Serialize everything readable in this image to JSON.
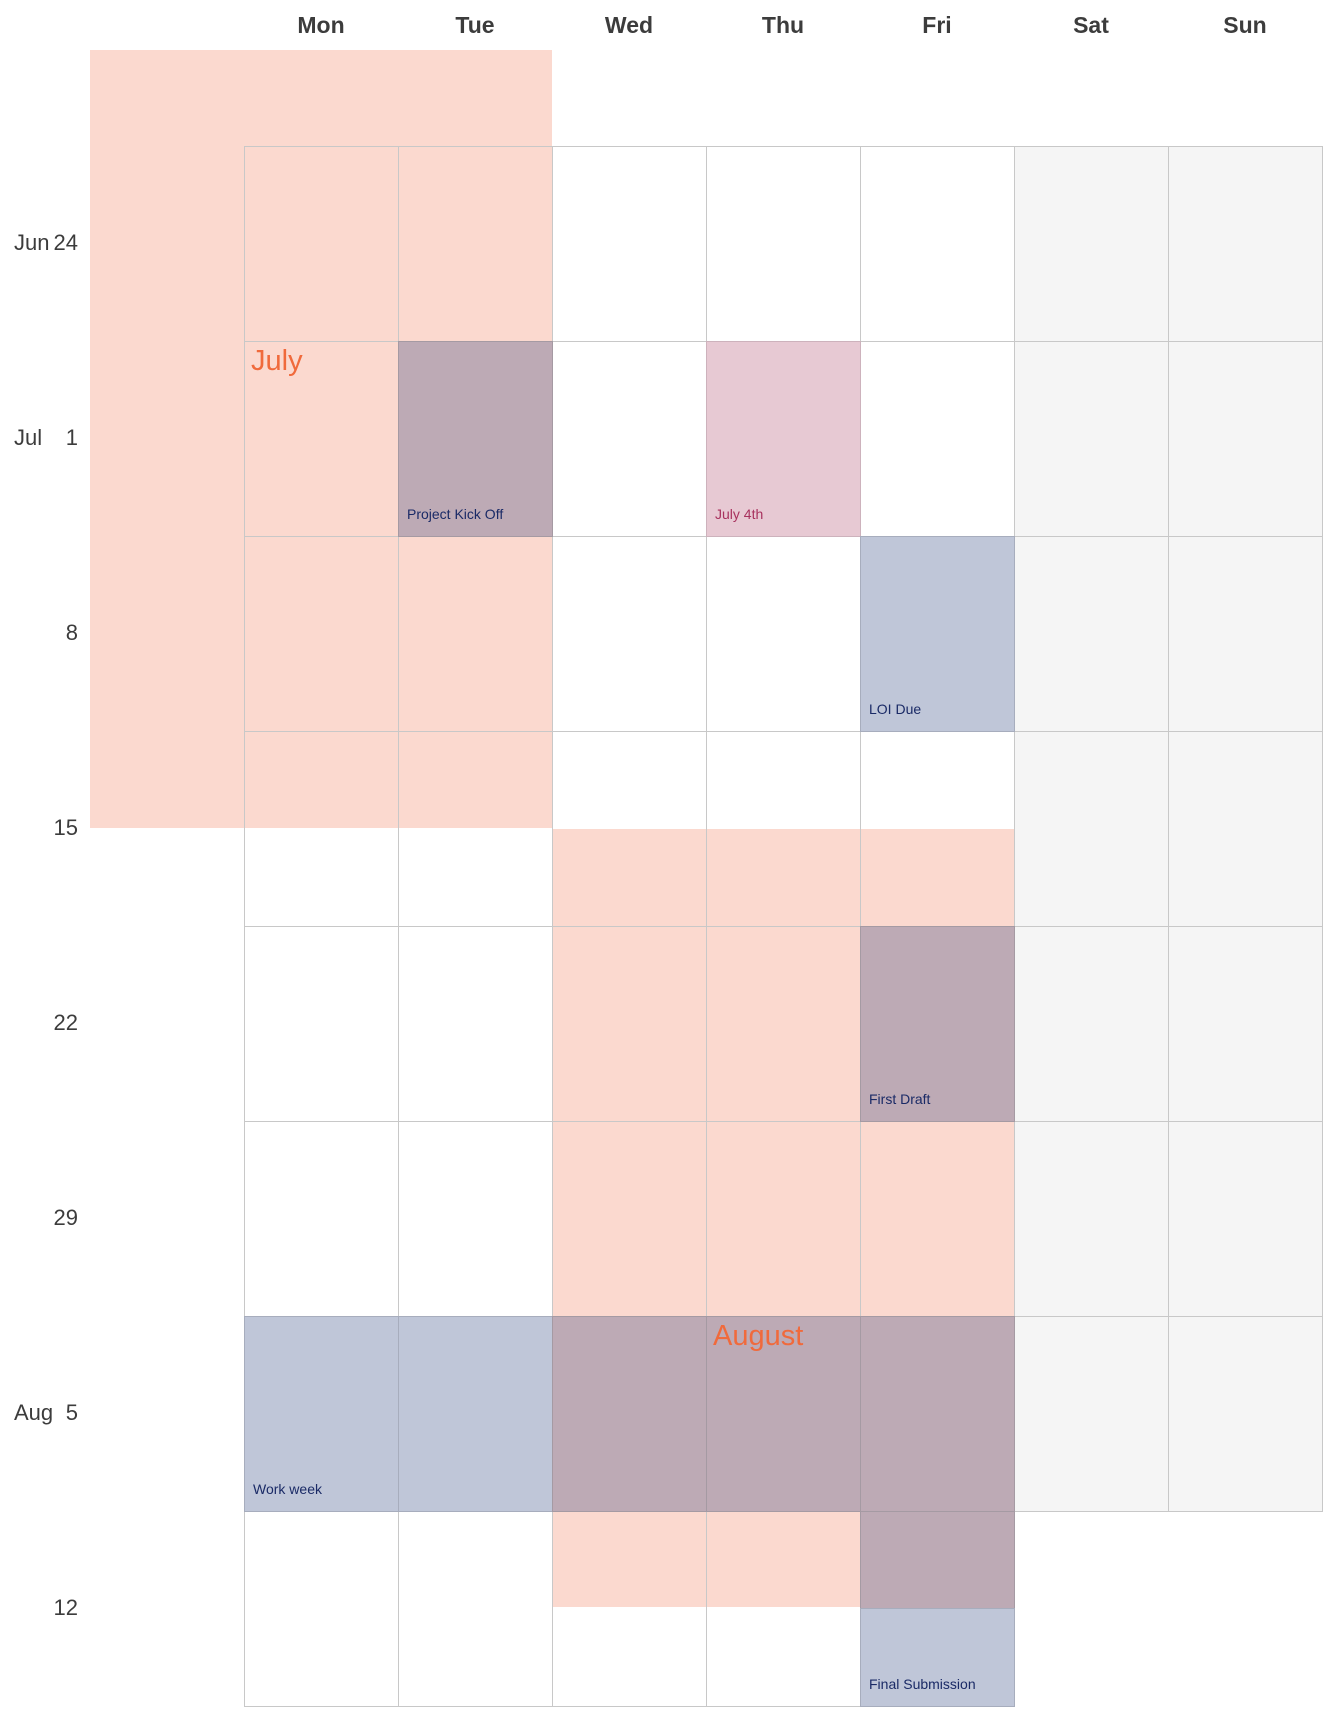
{
  "weekdays": [
    "Mon",
    "Tue",
    "Wed",
    "Thu",
    "Fri",
    "Sat",
    "Sun"
  ],
  "weekends": [
    5,
    6
  ],
  "weeks": [
    {
      "month": "Jun",
      "day": "24"
    },
    {
      "month": "Jul",
      "day": "1"
    },
    {
      "month": "",
      "day": "8"
    },
    {
      "month": "",
      "day": "15"
    },
    {
      "month": "",
      "day": "22"
    },
    {
      "month": "",
      "day": "29"
    },
    {
      "month": "Aug",
      "day": "5"
    },
    {
      "month": "",
      "day": "12"
    }
  ],
  "month_labels": [
    {
      "text": "July",
      "week": 1,
      "col": 0
    },
    {
      "text": "August",
      "week": 6,
      "col": 3
    }
  ],
  "events": [
    {
      "label": "Project Kick Off",
      "week": 1,
      "col": 1,
      "style": "mauve"
    },
    {
      "label": "July 4th",
      "week": 1,
      "col": 3,
      "style": "pink"
    },
    {
      "label": "LOI Due",
      "week": 2,
      "col": 4,
      "style": "blue"
    },
    {
      "label": "First Draft",
      "week": 4,
      "col": 4,
      "style": "mauve"
    },
    {
      "label": "Work week",
      "week": 6,
      "col": 0,
      "style": "blue"
    },
    {
      "label": "",
      "week": 6,
      "col": 1,
      "style": "blue"
    },
    {
      "label": "",
      "week": 6,
      "col": 2,
      "style": "mauve"
    },
    {
      "label": "",
      "week": 6,
      "col": 3,
      "style": "mauve"
    },
    {
      "label": "",
      "week": 6,
      "col": 4,
      "style": "mauve"
    },
    {
      "label": "",
      "week": 7,
      "col": 4,
      "style": "mauve"
    },
    {
      "label": "Final Submission",
      "week": 7,
      "col": 4,
      "style": "blue-lower"
    }
  ],
  "colors": {
    "highlight_band": "#fbd9cf",
    "mauve_event": "#bdaab5",
    "blue_event": "#bfc6d8",
    "pink_event": "#e7c9d3",
    "month_label": "#f06a3c",
    "event_text": "#1a2a66",
    "grid_line": "#c8c8c8",
    "weekend_fill": "#f5f5f5"
  }
}
